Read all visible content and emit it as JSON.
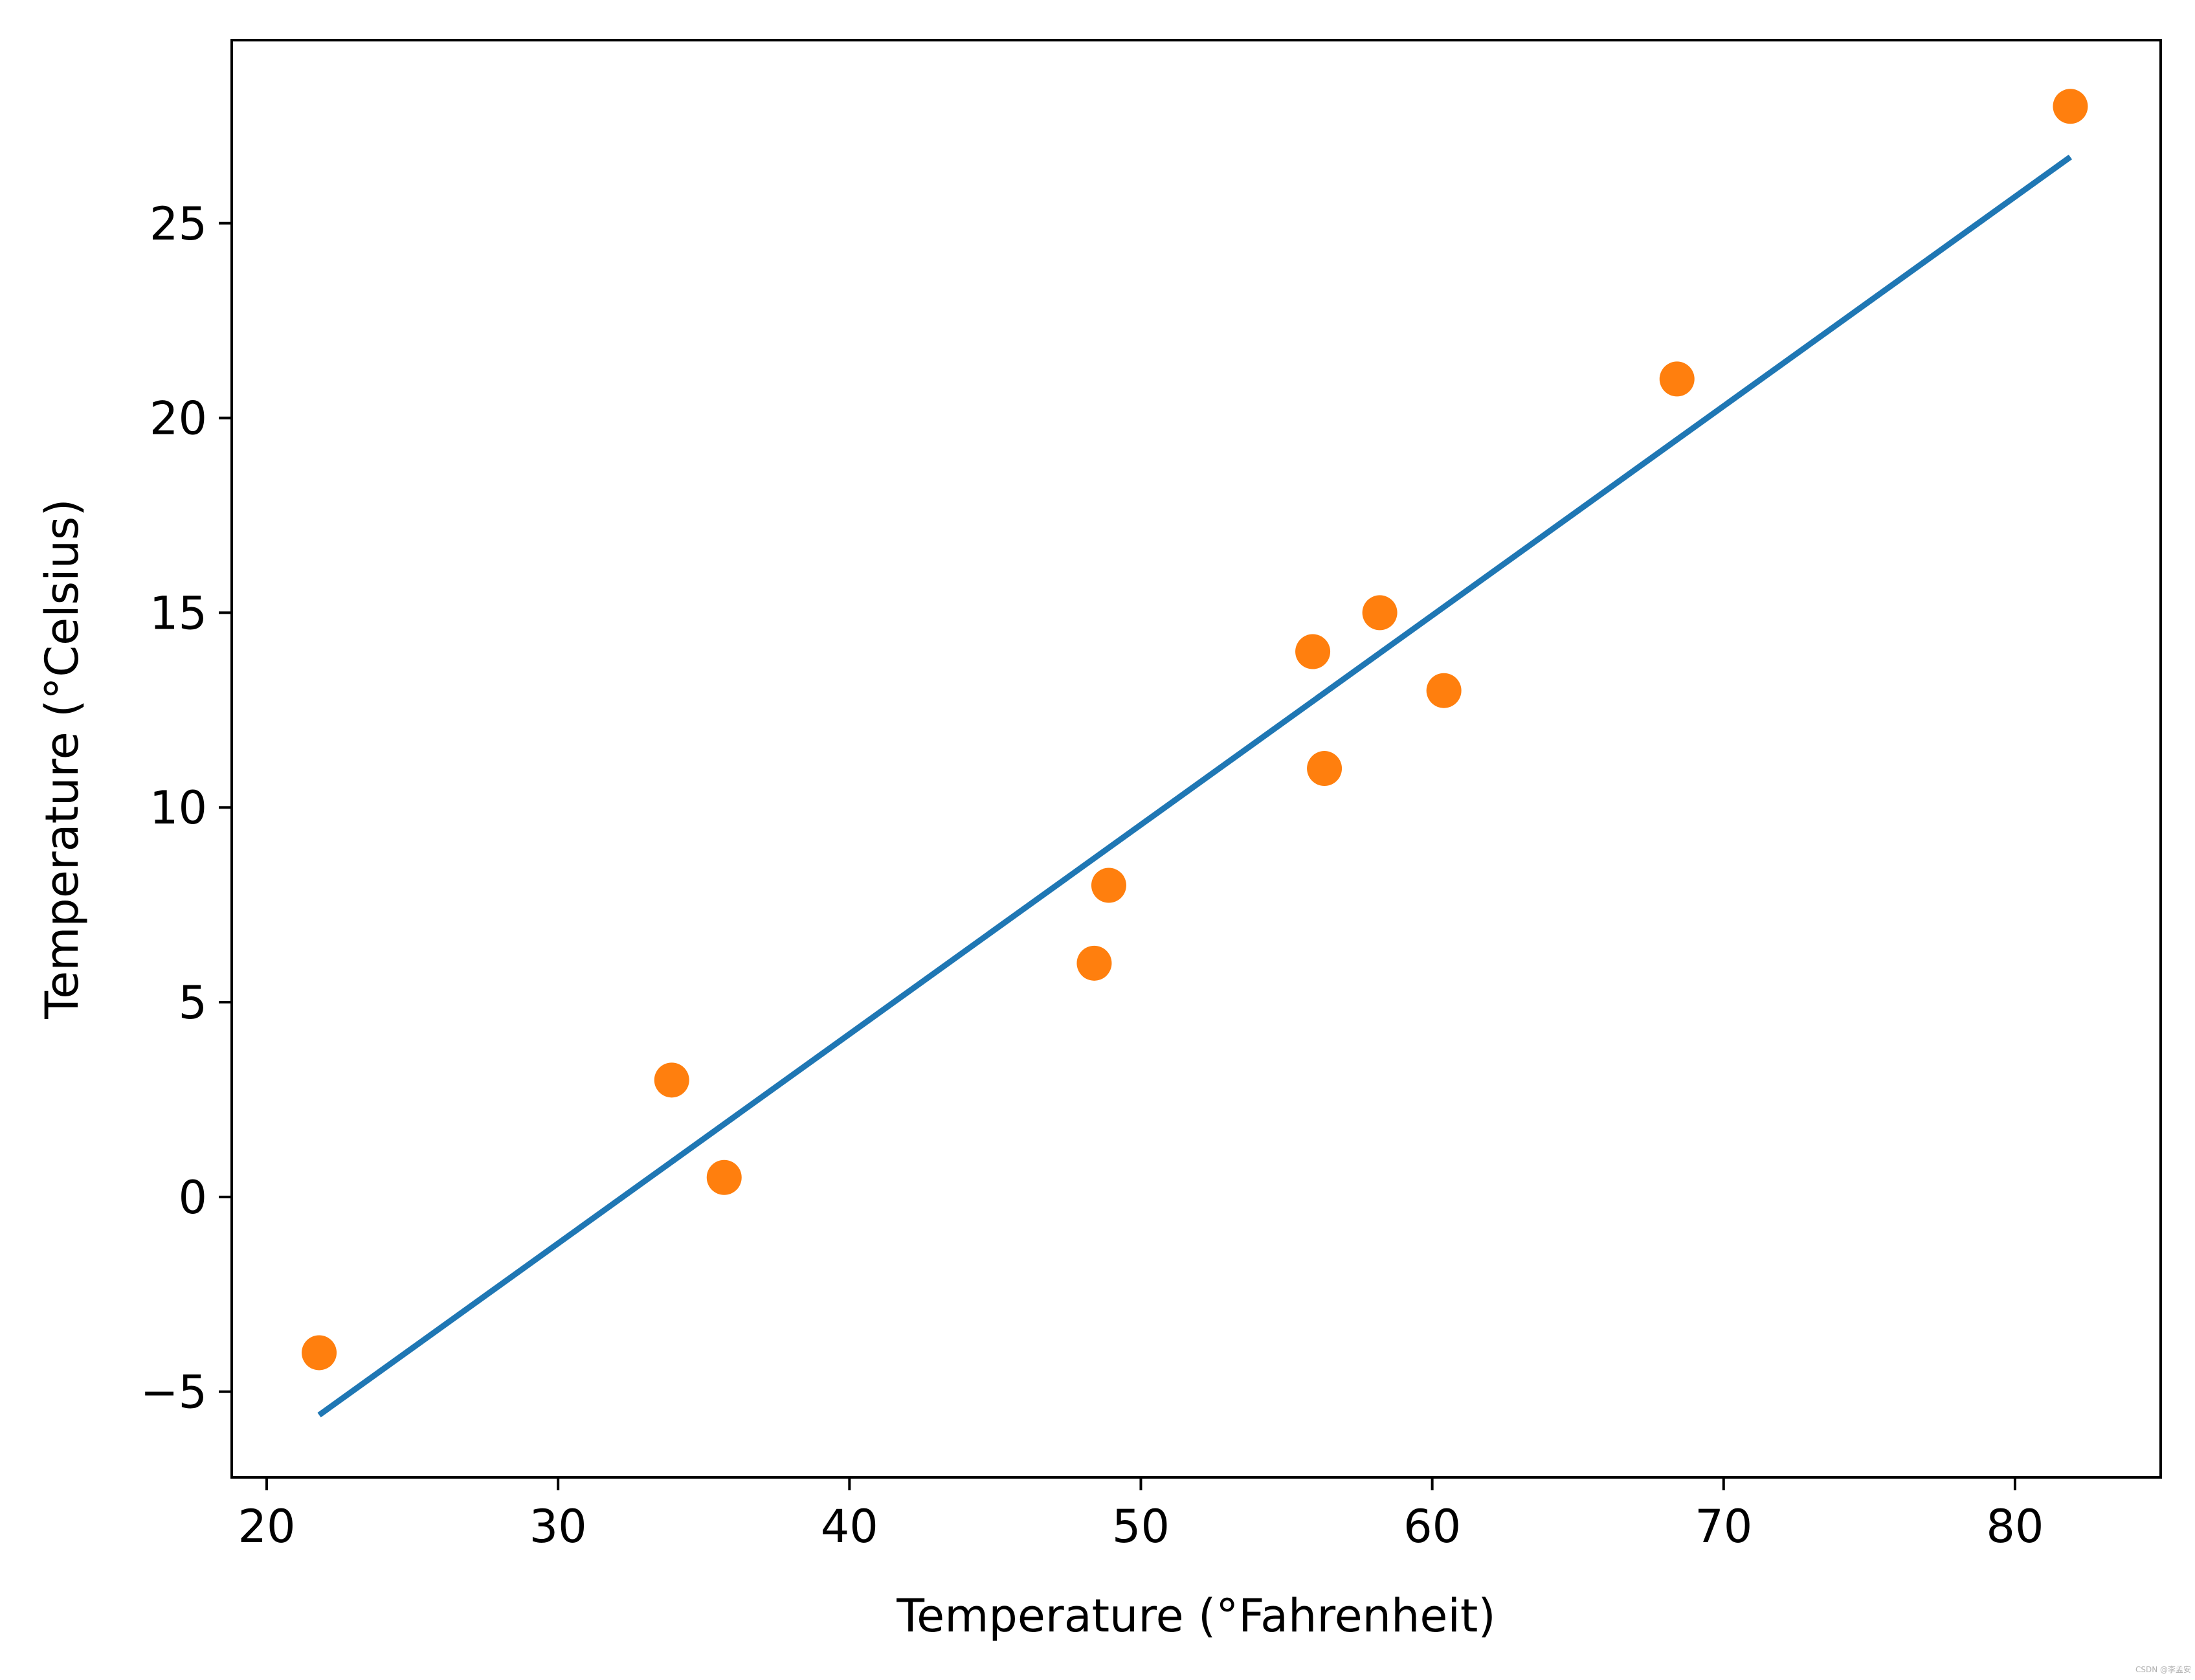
{
  "chart_data": {
    "type": "scatter",
    "title": "",
    "xlabel": "Temperature (°Fahrenheit)",
    "ylabel": "Temperature (°Celsius)",
    "xlim": [
      18.8,
      85.0
    ],
    "ylim": [
      -7.2,
      29.7
    ],
    "x_ticks": [
      20,
      30,
      40,
      50,
      60,
      70,
      80
    ],
    "y_ticks": [
      -5,
      0,
      5,
      10,
      15,
      20,
      25
    ],
    "x_tick_labels": [
      "20",
      "30",
      "40",
      "50",
      "60",
      "70",
      "80"
    ],
    "y_tick_labels": [
      "−5",
      "0",
      "5",
      "10",
      "15",
      "20",
      "25"
    ],
    "grid": false,
    "legend": "none",
    "series": [
      {
        "kind": "line",
        "color": "#1f77b4",
        "x": [
          21.8,
          81.9
        ],
        "y": [
          -5.6,
          26.7
        ]
      },
      {
        "kind": "scatter",
        "color": "#ff7f0e",
        "x": [
          35.7,
          55.9,
          58.2,
          81.9,
          56.3,
          48.9,
          33.9,
          21.8,
          48.4,
          60.4,
          68.4
        ],
        "y": [
          0.5,
          14.0,
          15.0,
          28.0,
          11.0,
          8.0,
          3.0,
          -4.0,
          6.0,
          13.0,
          21.0
        ]
      }
    ]
  },
  "watermark": "CSDN @李孟安"
}
